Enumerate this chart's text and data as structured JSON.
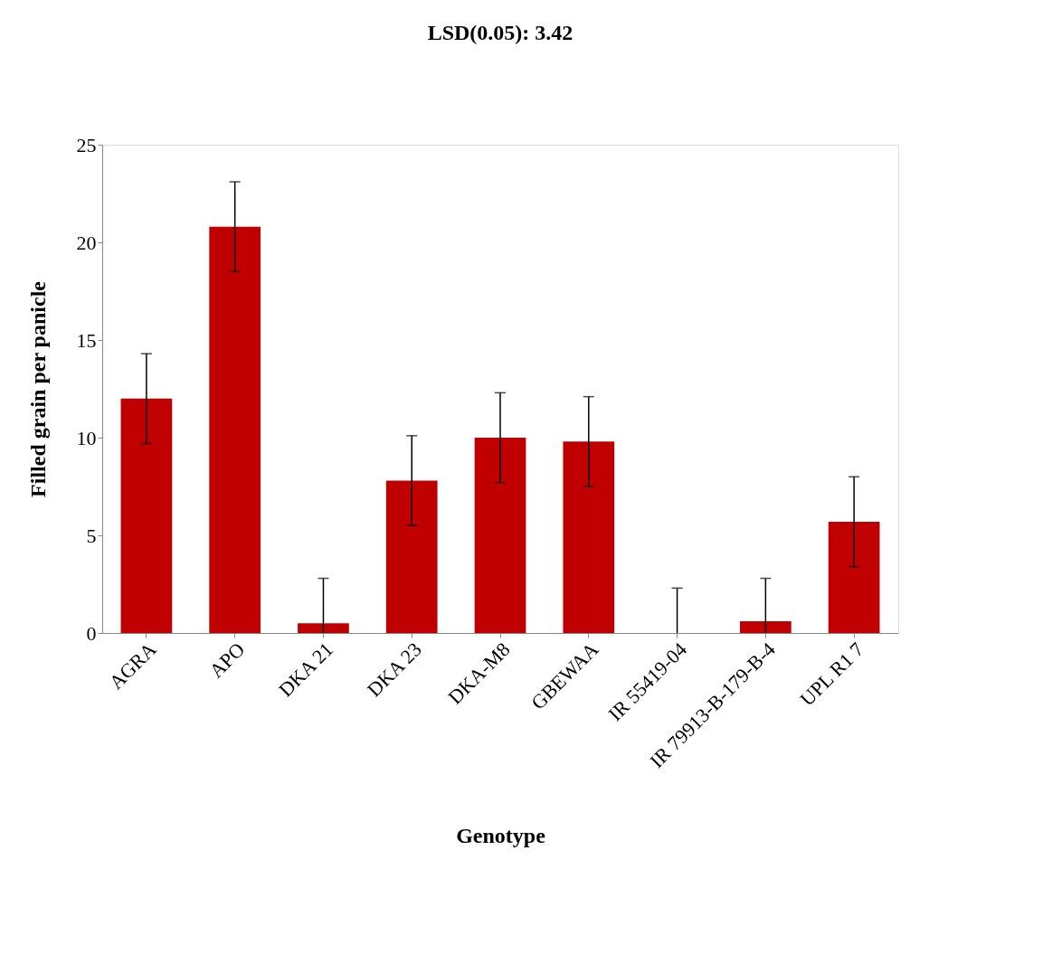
{
  "chart_data": {
    "type": "bar",
    "title": "LSD(0.05): 3.42",
    "xlabel": "Genotype",
    "ylabel": "Filled grain per panicle",
    "categories": [
      "AGRA",
      "APO",
      "DKA 21",
      "DKA 23",
      "DKA-M8",
      "GBEWAA",
      "IR 55419-04",
      "IR 79913-B-179-B-4",
      "UPL R1 7"
    ],
    "values": [
      12.0,
      20.8,
      0.5,
      7.8,
      10.0,
      9.8,
      0,
      0.6,
      5.7
    ],
    "errors": [
      2.3,
      2.3,
      [
        0,
        2.8
      ],
      2.3,
      2.3,
      2.3,
      [
        0,
        2.3
      ],
      [
        0,
        2.8
      ],
      2.3
    ],
    "color": "#c00000",
    "ylim": [
      0,
      25
    ],
    "yticks": [
      0,
      5,
      10,
      15,
      20,
      25
    ],
    "grid": false
  }
}
